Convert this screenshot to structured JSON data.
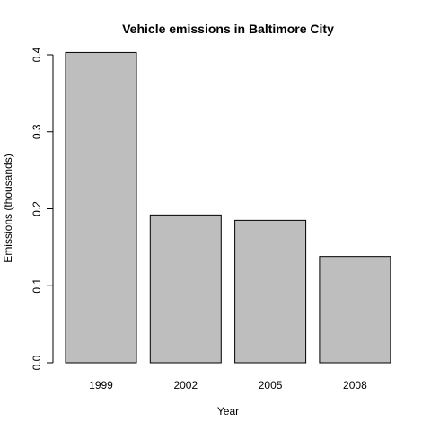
{
  "chart_data": {
    "type": "bar",
    "title": "Vehicle emissions in Baltimore City",
    "xlabel": "Year",
    "ylabel": "Emissions (thousands)",
    "categories": [
      "1999",
      "2002",
      "2005",
      "2008"
    ],
    "values": [
      0.403,
      0.192,
      0.185,
      0.138
    ],
    "ylim": [
      0,
      0.4
    ],
    "yticks": [
      "0.0",
      "0.1",
      "0.2",
      "0.3",
      "0.4"
    ],
    "bar_fill": "#bebebe",
    "bar_stroke": "#000000",
    "grid": false
  }
}
